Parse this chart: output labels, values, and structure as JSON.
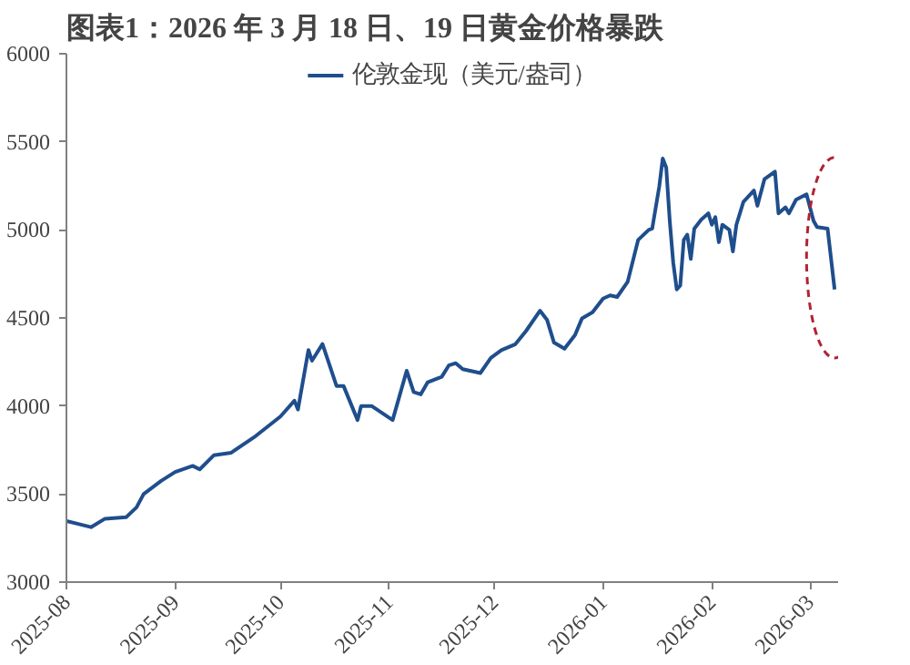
{
  "chart_data": {
    "type": "line",
    "title": "图表1：2026 年 3 月 18 日、19 日黄金价格暴跌",
    "x": [
      "2025-08-01",
      "2025-08-08",
      "2025-08-12",
      "2025-08-18",
      "2025-08-21",
      "2025-08-23",
      "2025-08-28",
      "2025-09-01",
      "2025-09-06",
      "2025-09-08",
      "2025-09-12",
      "2025-09-17",
      "2025-09-24",
      "2025-10-01",
      "2025-10-05",
      "2025-10-06",
      "2025-10-09",
      "2025-10-10",
      "2025-10-13",
      "2025-10-17",
      "2025-10-19",
      "2025-10-23",
      "2025-10-24",
      "2025-10-27",
      "2025-11-02",
      "2025-11-03",
      "2025-11-06",
      "2025-11-08",
      "2025-11-10",
      "2025-11-12",
      "2025-11-16",
      "2025-11-18",
      "2025-11-20",
      "2025-11-22",
      "2025-11-27",
      "2025-11-30",
      "2025-12-03",
      "2025-12-07",
      "2025-12-10",
      "2025-12-14",
      "2025-12-16",
      "2025-12-18",
      "2025-12-21",
      "2025-12-24",
      "2025-12-26",
      "2025-12-29",
      "2026-01-01",
      "2026-01-03",
      "2026-01-05",
      "2026-01-08",
      "2026-01-11",
      "2026-01-14",
      "2026-01-15",
      "2026-01-17",
      "2026-01-18",
      "2026-01-19",
      "2026-01-20",
      "2026-01-21",
      "2026-01-22",
      "2026-01-23",
      "2026-01-24",
      "2026-01-25",
      "2026-01-26",
      "2026-01-27",
      "2026-01-29",
      "2026-01-31",
      "2026-02-01",
      "2026-02-02",
      "2026-02-03",
      "2026-02-04",
      "2026-02-06",
      "2026-02-07",
      "2026-02-08",
      "2026-02-10",
      "2026-02-13",
      "2026-02-14",
      "2026-02-16",
      "2026-02-19",
      "2026-02-20",
      "2026-02-22",
      "2026-02-23",
      "2026-02-25",
      "2026-02-28",
      "2026-03-02",
      "2026-03-03",
      "2026-03-06",
      "2026-03-08"
    ],
    "series": [
      {
        "name": "伦敦金现（美元/盎司）",
        "color": "#1f4e8c",
        "values": [
          3347,
          3312,
          3360,
          3368,
          3425,
          3500,
          3575,
          3625,
          3660,
          3640,
          3720,
          3735,
          3830,
          3940,
          4030,
          3980,
          4318,
          4257,
          4352,
          4114,
          4114,
          3920,
          4000,
          4000,
          3920,
          3990,
          4200,
          4079,
          4066,
          4135,
          4166,
          4230,
          4243,
          4209,
          4187,
          4273,
          4317,
          4351,
          4425,
          4541,
          4490,
          4360,
          4325,
          4403,
          4498,
          4532,
          4610,
          4628,
          4619,
          4705,
          4943,
          5000,
          5007,
          5245,
          5405,
          5353,
          5051,
          4813,
          4662,
          4684,
          4943,
          4973,
          4835,
          5007,
          5059,
          5094,
          5029,
          5072,
          4930,
          5029,
          5000,
          4878,
          5029,
          5159,
          5223,
          5137,
          5288,
          5331,
          5094,
          5128,
          5094,
          5171,
          5202,
          5051,
          5016,
          5007,
          4662
        ]
      }
    ],
    "xlim": [
      "2025-08-01",
      "2026-03-09"
    ],
    "xticks": [
      "2025-08",
      "2025-09",
      "2025-10",
      "2025-11",
      "2025-12",
      "2026-01",
      "2026-02",
      "2026-03"
    ],
    "ylim": [
      3000,
      6000
    ],
    "yticks": [
      3000,
      3500,
      4000,
      4500,
      5000,
      5500,
      6000
    ],
    "grid": false,
    "legend": "top",
    "marker": "none",
    "line_style": "solid"
  }
}
